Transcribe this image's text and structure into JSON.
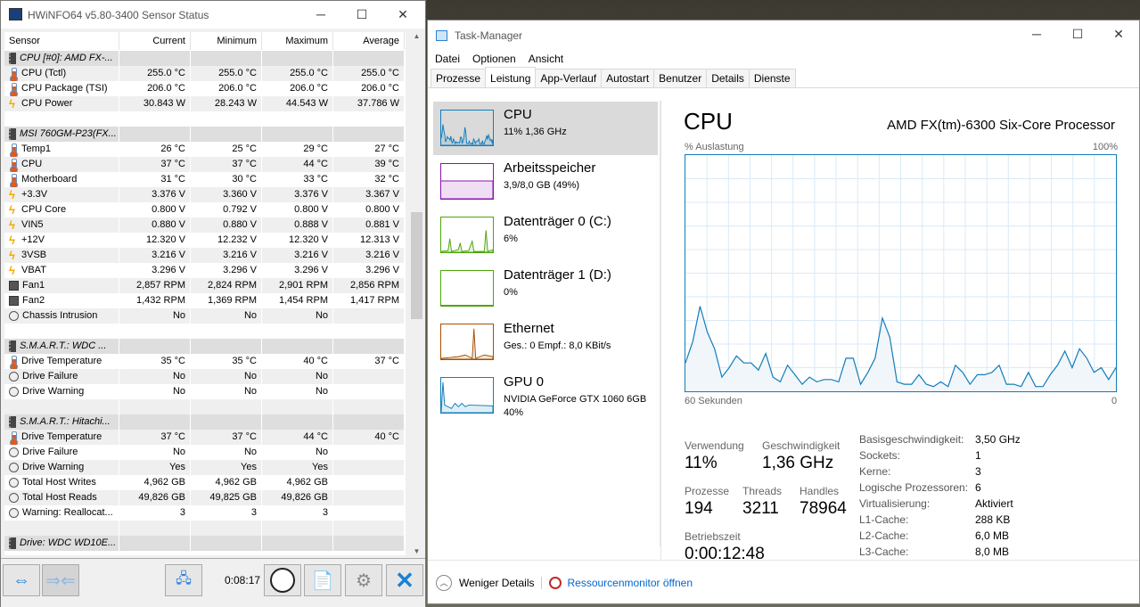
{
  "hwinfo": {
    "title": "HWiNFO64 v5.80-3400 Sensor Status",
    "columns": [
      "Sensor",
      "Current",
      "Minimum",
      "Maximum",
      "Average"
    ],
    "rows": [
      {
        "type": "group",
        "name": "CPU [#0]: AMD FX-..."
      },
      {
        "icon": "therm",
        "name": "CPU (Tctl)",
        "v": [
          "255.0 °C",
          "255.0 °C",
          "255.0 °C",
          "255.0 °C"
        ]
      },
      {
        "icon": "therm",
        "name": "CPU Package (TSI)",
        "v": [
          "206.0 °C",
          "206.0 °C",
          "206.0 °C",
          "206.0 °C"
        ]
      },
      {
        "icon": "volt",
        "name": "CPU Power",
        "v": [
          "30.843 W",
          "28.243 W",
          "44.543 W",
          "37.786 W"
        ]
      },
      {
        "type": "blank"
      },
      {
        "type": "group",
        "name": "MSI 760GM-P23(FX..."
      },
      {
        "icon": "therm",
        "name": "Temp1",
        "v": [
          "26 °C",
          "25 °C",
          "29 °C",
          "27 °C"
        ]
      },
      {
        "icon": "therm",
        "name": "CPU",
        "v": [
          "37 °C",
          "37 °C",
          "44 °C",
          "39 °C"
        ]
      },
      {
        "icon": "therm",
        "name": "Motherboard",
        "v": [
          "31 °C",
          "30 °C",
          "33 °C",
          "32 °C"
        ]
      },
      {
        "icon": "volt",
        "name": "+3.3V",
        "v": [
          "3.376 V",
          "3.360 V",
          "3.376 V",
          "3.367 V"
        ]
      },
      {
        "icon": "volt",
        "name": "CPU Core",
        "v": [
          "0.800 V",
          "0.792 V",
          "0.800 V",
          "0.800 V"
        ]
      },
      {
        "icon": "volt",
        "name": "VIN5",
        "v": [
          "0.880 V",
          "0.880 V",
          "0.888 V",
          "0.881 V"
        ]
      },
      {
        "icon": "volt",
        "name": "+12V",
        "v": [
          "12.320 V",
          "12.232 V",
          "12.320 V",
          "12.313 V"
        ]
      },
      {
        "icon": "volt",
        "name": "3VSB",
        "v": [
          "3.216 V",
          "3.216 V",
          "3.216 V",
          "3.216 V"
        ]
      },
      {
        "icon": "volt",
        "name": "VBAT",
        "v": [
          "3.296 V",
          "3.296 V",
          "3.296 V",
          "3.296 V"
        ]
      },
      {
        "icon": "fan",
        "name": "Fan1",
        "v": [
          "2,857 RPM",
          "2,824 RPM",
          "2,901 RPM",
          "2,856 RPM"
        ]
      },
      {
        "icon": "fan",
        "name": "Fan2",
        "v": [
          "1,432 RPM",
          "1,369 RPM",
          "1,454 RPM",
          "1,417 RPM"
        ]
      },
      {
        "icon": "clk",
        "name": "Chassis Intrusion",
        "v": [
          "No",
          "No",
          "No",
          ""
        ]
      },
      {
        "type": "blank"
      },
      {
        "type": "group",
        "name": "S.M.A.R.T.: WDC ..."
      },
      {
        "icon": "therm",
        "name": "Drive Temperature",
        "v": [
          "35 °C",
          "35 °C",
          "40 °C",
          "37 °C"
        ]
      },
      {
        "icon": "clk",
        "name": "Drive Failure",
        "v": [
          "No",
          "No",
          "No",
          ""
        ]
      },
      {
        "icon": "clk",
        "name": "Drive Warning",
        "v": [
          "No",
          "No",
          "No",
          ""
        ]
      },
      {
        "type": "blank"
      },
      {
        "type": "group",
        "name": "S.M.A.R.T.: Hitachi..."
      },
      {
        "icon": "therm",
        "name": "Drive Temperature",
        "v": [
          "37 °C",
          "37 °C",
          "44 °C",
          "40 °C"
        ]
      },
      {
        "icon": "clk",
        "name": "Drive Failure",
        "v": [
          "No",
          "No",
          "No",
          ""
        ]
      },
      {
        "icon": "clk",
        "name": "Drive Warning",
        "v": [
          "Yes",
          "Yes",
          "Yes",
          ""
        ]
      },
      {
        "icon": "clk",
        "name": "Total Host Writes",
        "v": [
          "4,962 GB",
          "4,962 GB",
          "4,962 GB",
          ""
        ]
      },
      {
        "icon": "clk",
        "name": "Total Host Reads",
        "v": [
          "49,826 GB",
          "49,825 GB",
          "49,826 GB",
          ""
        ]
      },
      {
        "icon": "clk",
        "name": "Warning: Reallocat...",
        "v": [
          "3",
          "3",
          "3",
          ""
        ]
      },
      {
        "type": "blank"
      },
      {
        "type": "group",
        "name": "Drive: WDC WD10E..."
      }
    ],
    "timer": "0:08:17"
  },
  "taskmanager": {
    "title": "Task-Manager",
    "menu": [
      "Datei",
      "Optionen",
      "Ansicht"
    ],
    "tabs": [
      "Prozesse",
      "Leistung",
      "App-Verlauf",
      "Autostart",
      "Benutzer",
      "Details",
      "Dienste"
    ],
    "active_tab": "Leistung",
    "resources": [
      {
        "name": "CPU",
        "sub": "11% 1,36 GHz",
        "color": "#117dbb"
      },
      {
        "name": "Arbeitsspeicher",
        "sub": "3,9/8,0 GB (49%)",
        "color": "#8b12ae"
      },
      {
        "name": "Datenträger 0 (C:)",
        "sub": "6%",
        "color": "#4da60c"
      },
      {
        "name": "Datenträger 1 (D:)",
        "sub": "0%",
        "color": "#4da60c"
      },
      {
        "name": "Ethernet",
        "sub": "Ges.: 0 Empf.: 8,0 KBit/s",
        "color": "#a74f01"
      },
      {
        "name": "GPU 0",
        "sub": "NVIDIA GeForce GTX 1060 6GB",
        "sub2": "40%",
        "color": "#117dbb"
      }
    ],
    "cpu": {
      "title": "CPU",
      "model": "AMD FX(tm)-6300 Six-Core Processor",
      "graph_label": "% Auslastung",
      "graph_max": "100%",
      "graph_left": "60 Sekunden",
      "graph_right": "0",
      "usage_history": [
        12,
        21,
        36,
        25,
        18,
        6,
        10,
        15,
        12,
        12,
        9,
        16,
        6,
        4,
        11,
        7,
        3,
        6,
        4,
        5,
        5,
        4,
        14,
        14,
        3,
        8,
        14,
        31,
        23,
        4,
        3,
        3,
        7,
        3,
        2,
        4,
        2,
        11,
        8,
        3,
        7,
        7,
        8,
        11,
        3,
        3,
        2,
        8,
        2,
        2,
        7,
        11,
        17,
        10,
        18,
        14,
        8,
        10,
        5,
        10
      ],
      "stats": {
        "Verwendung": "11%",
        "Geschwindigkeit": "1,36 GHz",
        "Prozesse": "194",
        "Threads": "3211",
        "Handles": "78964",
        "Betriebszeit": "0:00:12:48"
      },
      "stat_labels": [
        "Verwendung",
        "Geschwindigkeit",
        "Prozesse",
        "Threads",
        "Handles",
        "Betriebszeit"
      ],
      "specs": [
        [
          "Basisgeschwindigkeit:",
          "3,50 GHz"
        ],
        [
          "Sockets:",
          "1"
        ],
        [
          "Kerne:",
          "3"
        ],
        [
          "Logische Prozessoren:",
          "6"
        ],
        [
          "Virtualisierung:",
          "Aktiviert"
        ],
        [
          "L1-Cache:",
          "288 KB"
        ],
        [
          "L2-Cache:",
          "6,0 MB"
        ],
        [
          "L3-Cache:",
          "8,0 MB"
        ]
      ]
    },
    "footer": {
      "less": "Weniger Details",
      "resmon": "Ressourcenmonitor öffnen"
    }
  }
}
